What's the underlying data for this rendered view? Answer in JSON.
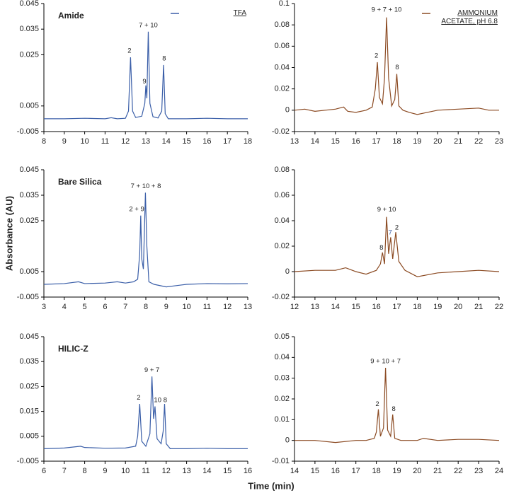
{
  "ylabel": "Absorbance (AU)",
  "xlabel": "Time (min)",
  "chart_data": [
    {
      "type": "line",
      "title": "Amide",
      "x": [
        8,
        9,
        10,
        11,
        11.3,
        11.6,
        12.0,
        12.15,
        12.25,
        12.35,
        12.5,
        12.8,
        12.95,
        13.0,
        13.05,
        13.12,
        13.2,
        13.35,
        13.6,
        13.78,
        13.87,
        13.95,
        14.1,
        15,
        16,
        17,
        18
      ],
      "series": [
        {
          "name": "TFA",
          "color": "#3a5ea8",
          "values": [
            0,
            0,
            0.0002,
            0,
            0.0004,
            0,
            0.0002,
            0.003,
            0.024,
            0.003,
            0.0005,
            0.001,
            0.006,
            0.013,
            0.008,
            0.034,
            0.006,
            0.0008,
            0.0003,
            0.003,
            0.021,
            0.002,
            0,
            0,
            0.0002,
            0,
            0
          ]
        }
      ],
      "xlim": [
        8,
        18
      ],
      "xticks": [
        8,
        9,
        10,
        11,
        12,
        13,
        14,
        15,
        16,
        17,
        18
      ],
      "ylim": [
        -0.005,
        0.045
      ],
      "yticks": [
        -0.005,
        0.005,
        0.025,
        0.035,
        0.045
      ],
      "legend": "upper right",
      "annotations": [
        {
          "text": "2",
          "x": 12.2,
          "y": 0.0265
        },
        {
          "text": "9",
          "x": 12.93,
          "y": 0.0145
        },
        {
          "text": "7 + 10",
          "x": 13.12,
          "y": 0.0365
        },
        {
          "text": "8",
          "x": 13.9,
          "y": 0.0235
        }
      ]
    },
    {
      "type": "line",
      "x": [
        13,
        13.5,
        14,
        14.5,
        15,
        15.4,
        15.6,
        16,
        16.5,
        16.8,
        16.95,
        17.05,
        17.15,
        17.3,
        17.4,
        17.5,
        17.6,
        17.75,
        17.9,
        18.0,
        18.1,
        18.3,
        18.6,
        19,
        19.5,
        20,
        21,
        22,
        22.5,
        23
      ],
      "series": [
        {
          "name": "AMMONIUM ACETATE, pH 6.8",
          "color": "#8b4a22",
          "values": [
            0,
            0.001,
            -0.001,
            0,
            0.001,
            0.003,
            -0.001,
            -0.002,
            0,
            0.003,
            0.02,
            0.045,
            0.012,
            0.006,
            0.03,
            0.087,
            0.03,
            0.004,
            0.01,
            0.034,
            0.004,
            0,
            -0.002,
            -0.004,
            -0.002,
            0,
            0.001,
            0.002,
            0,
            0
          ]
        }
      ],
      "xlim": [
        13,
        23
      ],
      "xticks": [
        13,
        14,
        15,
        16,
        17,
        18,
        19,
        20,
        21,
        22,
        23
      ],
      "ylim": [
        -0.02,
        0.1
      ],
      "yticks": [
        -0.02,
        0,
        0.02,
        0.04,
        0.06,
        0.08,
        0.1
      ],
      "legend": "upper right",
      "annotations": [
        {
          "text": "2",
          "x": 17.0,
          "y": 0.051
        },
        {
          "text": "9 + 7 + 10",
          "x": 17.5,
          "y": 0.094
        },
        {
          "text": "8",
          "x": 18.02,
          "y": 0.04
        }
      ]
    },
    {
      "type": "line",
      "title": "Bare Silica",
      "x": [
        3,
        4,
        4.7,
        5,
        6,
        6.6,
        7,
        7.4,
        7.6,
        7.7,
        7.75,
        7.8,
        7.88,
        7.98,
        8.05,
        8.15,
        8.4,
        9,
        10,
        11,
        12,
        13
      ],
      "series": [
        {
          "color": "#3a5ea8",
          "values": [
            0,
            0.0003,
            0.001,
            0.0003,
            0.0005,
            0.001,
            0.0005,
            0.001,
            0.002,
            0.012,
            0.027,
            0.01,
            0.006,
            0.036,
            0.015,
            0.001,
            0,
            -0.001,
            0,
            0.0003,
            0.0002,
            0.0003
          ]
        }
      ],
      "xlim": [
        3,
        13
      ],
      "xticks": [
        3,
        4,
        5,
        6,
        7,
        8,
        9,
        10,
        11,
        12,
        13
      ],
      "ylim": [
        -0.005,
        0.045
      ],
      "yticks": [
        -0.005,
        0.005,
        0.025,
        0.035,
        0.045
      ],
      "annotations": [
        {
          "text": "2 + 9",
          "x": 7.55,
          "y": 0.0295
        },
        {
          "text": "7 + 10 + 8",
          "x": 8.0,
          "y": 0.0385
        }
      ]
    },
    {
      "type": "line",
      "x": [
        12,
        13,
        14,
        14.5,
        15,
        15.5,
        16,
        16.2,
        16.3,
        16.4,
        16.5,
        16.6,
        16.7,
        16.8,
        16.95,
        17.1,
        17.4,
        18,
        19,
        20,
        21,
        22
      ],
      "series": [
        {
          "color": "#8b4a22",
          "values": [
            0,
            0.001,
            0.001,
            0.003,
            0,
            -0.002,
            0.001,
            0.006,
            0.015,
            0.006,
            0.043,
            0.014,
            0.027,
            0.01,
            0.031,
            0.008,
            0.001,
            -0.004,
            -0.001,
            0,
            0.001,
            0
          ]
        }
      ],
      "xlim": [
        12,
        22
      ],
      "xticks": [
        12,
        13,
        14,
        15,
        16,
        17,
        18,
        19,
        20,
        21,
        22
      ],
      "ylim": [
        -0.02,
        0.08
      ],
      "yticks": [
        -0.02,
        0,
        0.02,
        0.04,
        0.06,
        0.08
      ],
      "annotations": [
        {
          "text": "8",
          "x": 16.25,
          "y": 0.0185
        },
        {
          "text": "9 + 10",
          "x": 16.5,
          "y": 0.0485
        },
        {
          "text": "7",
          "x": 16.68,
          "y": 0.0305,
          "color": "#3a5ea8"
        },
        {
          "text": "2",
          "x": 17.0,
          "y": 0.0345
        }
      ]
    },
    {
      "type": "line",
      "title": "HILIC-Z",
      "x": [
        6,
        7,
        7.8,
        8,
        9,
        10,
        10.5,
        10.6,
        10.7,
        10.8,
        11,
        11.2,
        11.3,
        11.38,
        11.45,
        11.55,
        11.75,
        11.85,
        11.92,
        12,
        12.2,
        13,
        14,
        15,
        16
      ],
      "series": [
        {
          "color": "#3a5ea8",
          "values": [
            0,
            0.0003,
            0.001,
            0.0005,
            0.0002,
            0.0003,
            0.001,
            0.005,
            0.018,
            0.003,
            0.001,
            0.006,
            0.029,
            0.012,
            0.017,
            0.004,
            0.002,
            0.007,
            0.018,
            0.002,
            0,
            0,
            0.0002,
            0,
            0
          ]
        }
      ],
      "xlim": [
        6,
        16
      ],
      "xticks": [
        6,
        7,
        8,
        9,
        10,
        11,
        12,
        13,
        14,
        15,
        16
      ],
      "ylim": [
        -0.005,
        0.045
      ],
      "yticks": [
        -0.005,
        0.005,
        0.015,
        0.025,
        0.035,
        0.045
      ],
      "annotations": [
        {
          "text": "2",
          "x": 10.65,
          "y": 0.0205
        },
        {
          "text": "9 + 7",
          "x": 11.3,
          "y": 0.0315
        },
        {
          "text": "10",
          "x": 11.58,
          "y": 0.0195
        },
        {
          "text": "8",
          "x": 11.95,
          "y": 0.0195
        }
      ]
    },
    {
      "type": "line",
      "x": [
        14,
        15,
        16,
        17,
        17.5,
        17.9,
        18.0,
        18.1,
        18.2,
        18.35,
        18.45,
        18.55,
        18.7,
        18.8,
        18.9,
        19.2,
        20,
        20.3,
        21,
        22,
        23,
        24
      ],
      "series": [
        {
          "color": "#8b4a22",
          "values": [
            0,
            0,
            -0.001,
            0,
            0,
            0.001,
            0.004,
            0.015,
            0.002,
            0.006,
            0.035,
            0.005,
            0.002,
            0.0125,
            0.001,
            0,
            0,
            0.001,
            0,
            0.0005,
            0.0005,
            0
          ]
        }
      ],
      "xlim": [
        14,
        24
      ],
      "xticks": [
        14,
        15,
        16,
        17,
        18,
        19,
        20,
        21,
        22,
        23,
        24
      ],
      "ylim": [
        -0.01,
        0.05
      ],
      "yticks": [
        -0.01,
        0,
        0.01,
        0.02,
        0.03,
        0.04,
        0.05
      ],
      "annotations": [
        {
          "text": "2",
          "x": 18.05,
          "y": 0.0175
        },
        {
          "text": "9 + 10 + 7",
          "x": 18.45,
          "y": 0.038
        },
        {
          "text": "8",
          "x": 18.85,
          "y": 0.015
        }
      ]
    }
  ]
}
